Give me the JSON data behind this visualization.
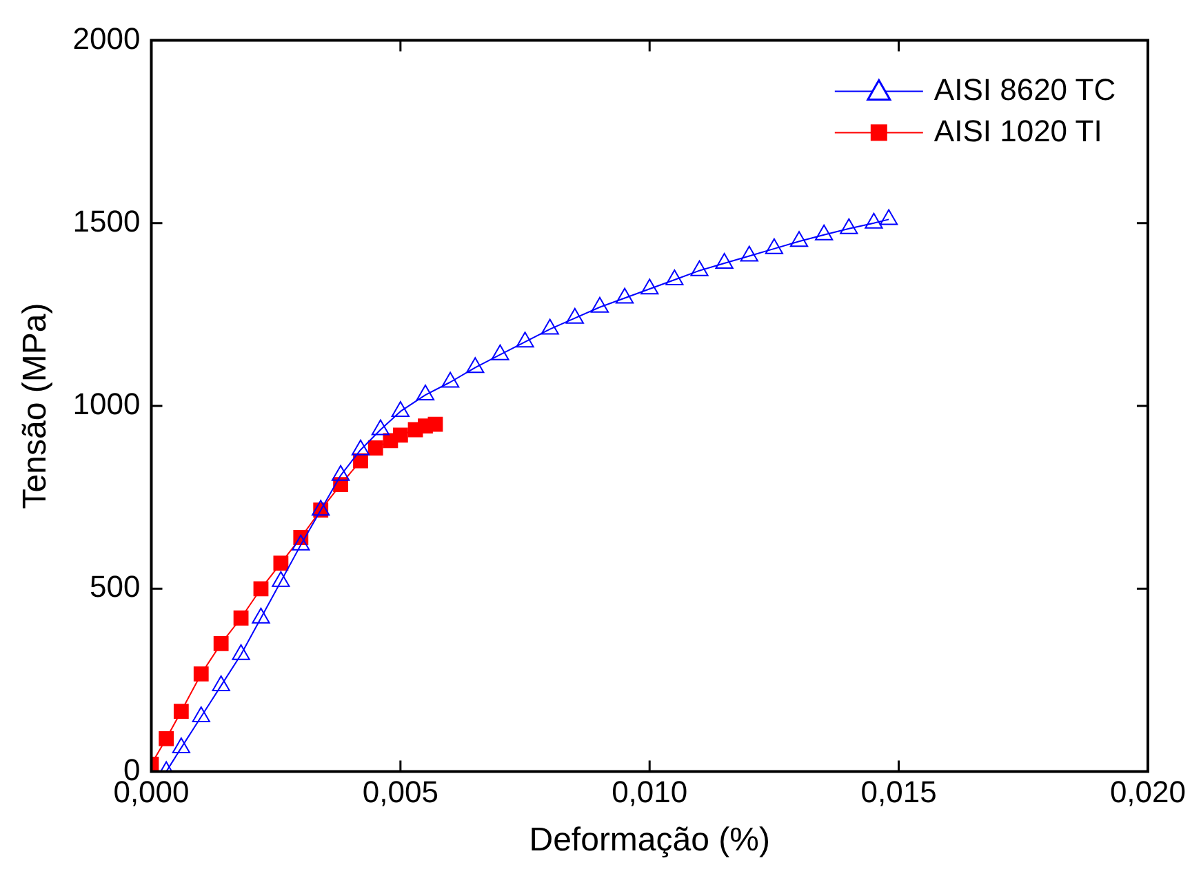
{
  "chart_data": {
    "type": "line",
    "xlabel": "Deformação (%)",
    "ylabel": "Tensão (MPa)",
    "xlim": [
      0,
      0.02
    ],
    "xticks": [
      {
        "value": 0,
        "label": "0,000"
      },
      {
        "value": 0.005,
        "label": "0,005"
      },
      {
        "value": 0.01,
        "label": "0,010"
      },
      {
        "value": 0.015,
        "label": "0,015"
      },
      {
        "value": 0.02,
        "label": "0,020"
      }
    ],
    "ylim": [
      0,
      2000
    ],
    "yticks": [
      0,
      500,
      1000,
      1500,
      2000
    ],
    "grid": false,
    "legend": "top right",
    "series": [
      {
        "name": "AISI 8620 TC",
        "color": "#0000ff",
        "marker": "triangle",
        "x": [
          0.0003,
          0.0006,
          0.001,
          0.0014,
          0.0018,
          0.0022,
          0.0026,
          0.003,
          0.0034,
          0.0038,
          0.0042,
          0.0046,
          0.005,
          0.0055,
          0.006,
          0.0065,
          0.007,
          0.0075,
          0.008,
          0.0085,
          0.009,
          0.0095,
          0.01,
          0.0105,
          0.011,
          0.0115,
          0.012,
          0.0125,
          0.013,
          0.0135,
          0.014,
          0.0145,
          0.0148
        ],
        "values": [
          0,
          65,
          150,
          235,
          320,
          420,
          520,
          620,
          715,
          810,
          880,
          935,
          985,
          1030,
          1065,
          1105,
          1140,
          1175,
          1210,
          1240,
          1270,
          1295,
          1320,
          1345,
          1370,
          1390,
          1410,
          1430,
          1450,
          1468,
          1485,
          1500,
          1510
        ]
      },
      {
        "name": "AISI 1020 TI",
        "color": "#ff0000",
        "marker": "square",
        "x": [
          0,
          0.0003,
          0.0006,
          0.001,
          0.0014,
          0.0018,
          0.0022,
          0.0026,
          0.003,
          0.0034,
          0.0038,
          0.0042,
          0.0045,
          0.0048,
          0.005,
          0.0053,
          0.0055,
          0.0057
        ],
        "values": [
          20,
          90,
          165,
          267,
          350,
          420,
          500,
          570,
          640,
          715,
          785,
          850,
          885,
          905,
          920,
          935,
          945,
          950
        ]
      }
    ]
  }
}
